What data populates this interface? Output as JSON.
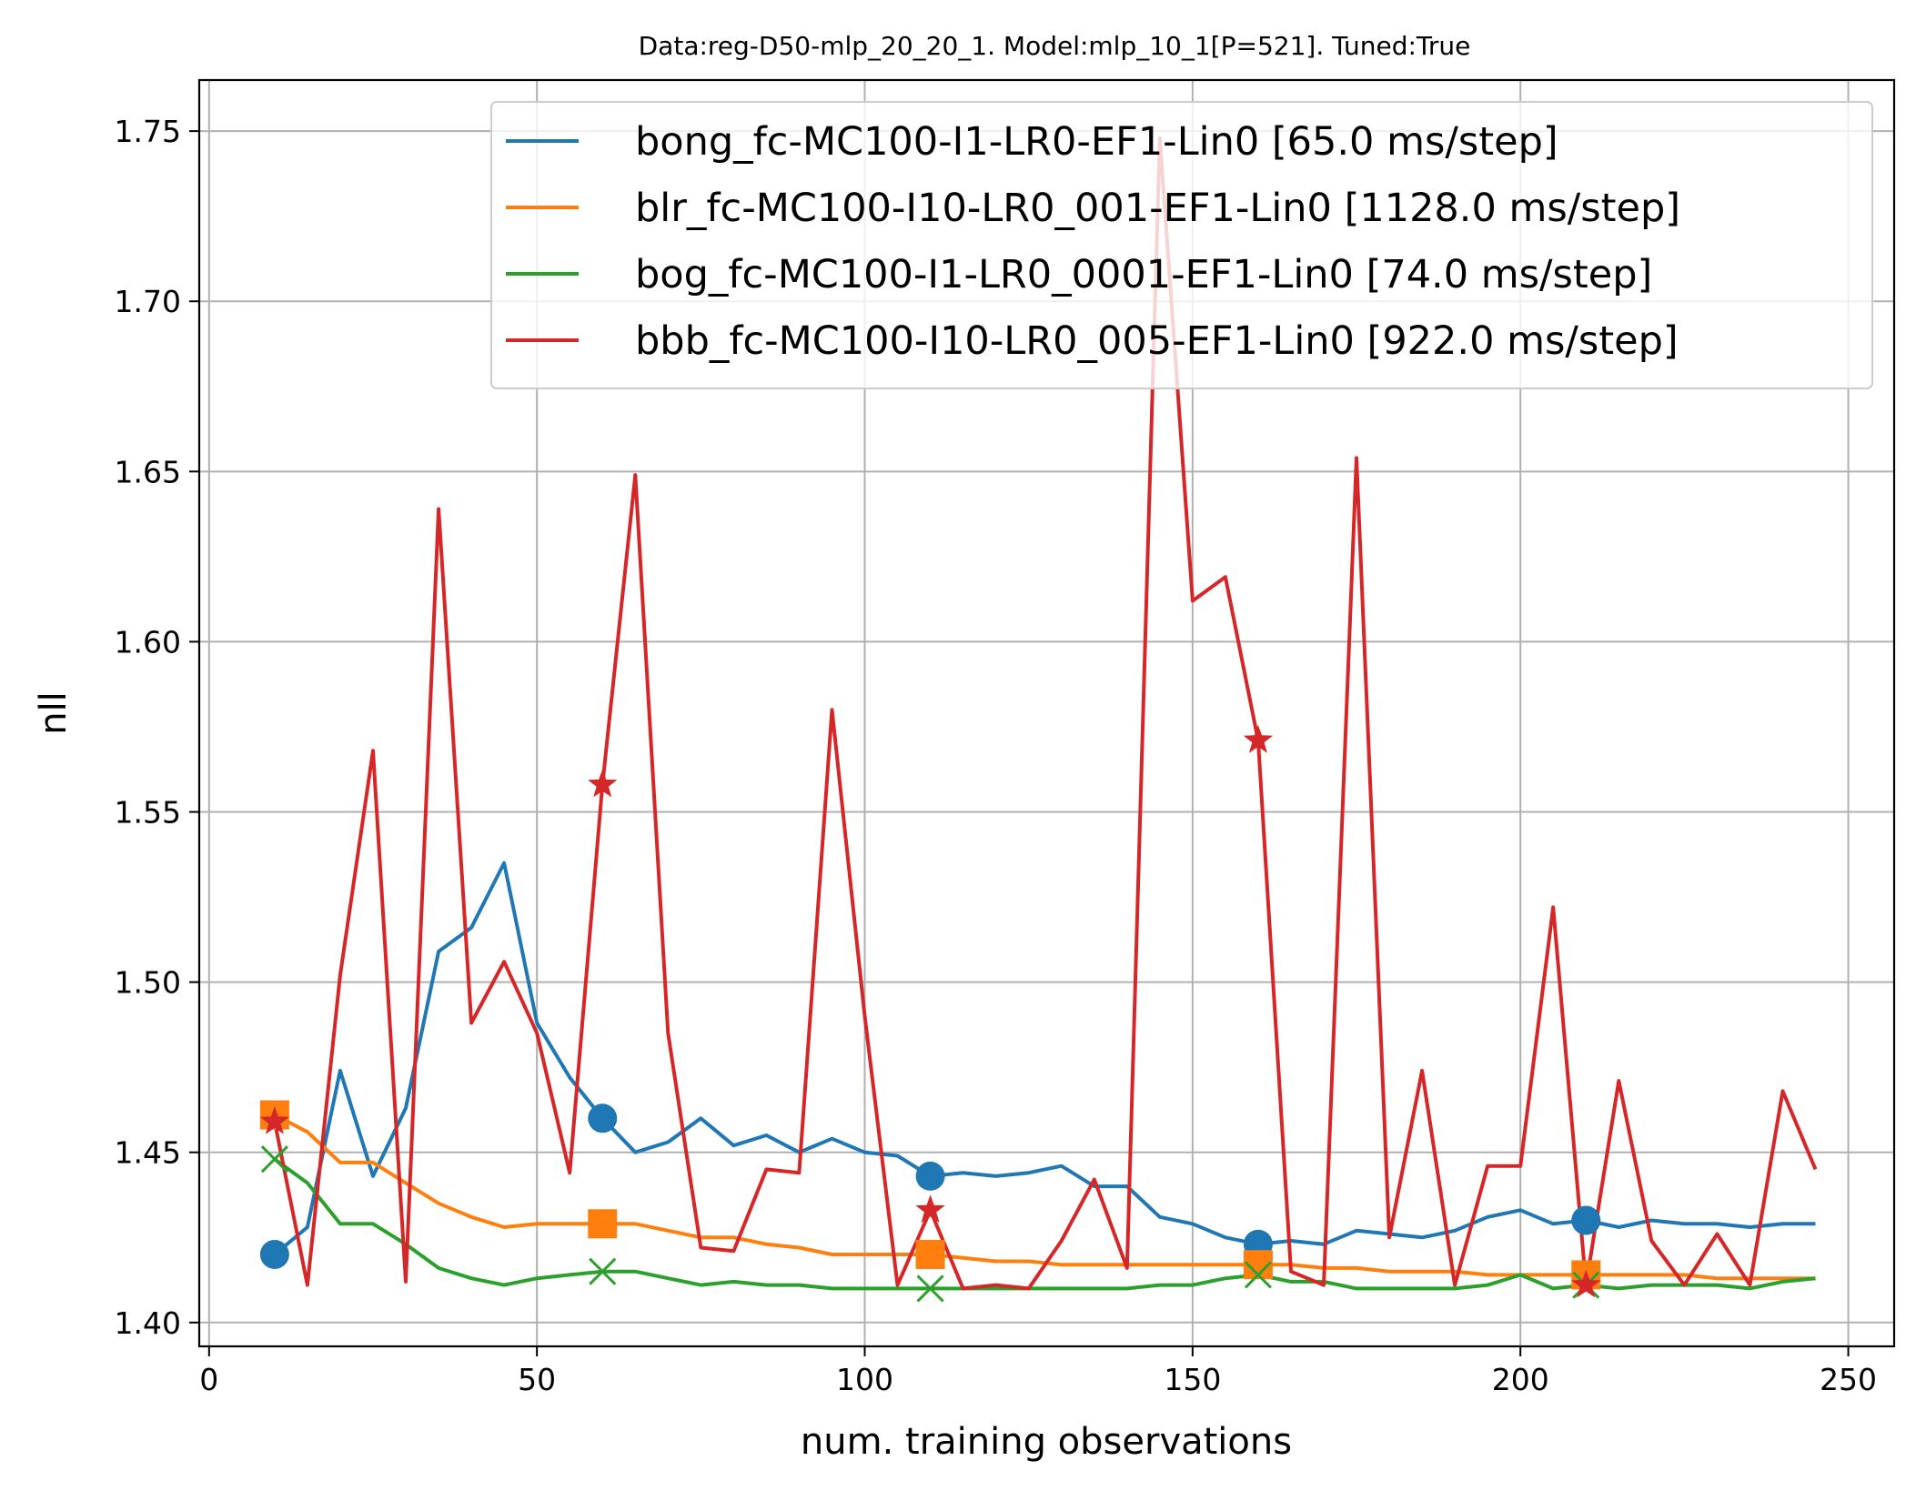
{
  "chart_data": {
    "type": "line",
    "title": "Data:reg-D50-mlp_20_20_1. Model:mlp_10_1[P=521]. Tuned:True",
    "xlabel": "num. training observations",
    "ylabel": "nll",
    "xlim": [
      -1.5,
      257
    ],
    "ylim": [
      1.393,
      1.765
    ],
    "xticks": [
      0,
      50,
      100,
      150,
      200,
      250
    ],
    "xtick_labels": [
      "0",
      "50",
      "100",
      "150",
      "200",
      "250"
    ],
    "yticks": [
      1.4,
      1.45,
      1.5,
      1.55,
      1.6,
      1.65,
      1.7,
      1.75
    ],
    "ytick_labels": [
      "1.40",
      "1.45",
      "1.50",
      "1.55",
      "1.60",
      "1.65",
      "1.70",
      "1.75"
    ],
    "grid": true,
    "legend_position": "upper right",
    "x": [
      10,
      15,
      20,
      25,
      30,
      35,
      40,
      45,
      50,
      55,
      60,
      65,
      70,
      75,
      80,
      85,
      90,
      95,
      100,
      105,
      110,
      115,
      120,
      125,
      130,
      135,
      140,
      145,
      150,
      155,
      160,
      165,
      170,
      175,
      180,
      185,
      190,
      195,
      200,
      205,
      210,
      215,
      220,
      225,
      230,
      235,
      240,
      245
    ],
    "marker_x": [
      10,
      60,
      110,
      160,
      210
    ],
    "series": [
      {
        "name": "bong_fc-MC100-I1-LR0-EF1-Lin0 [65.0 ms/step]",
        "color": "#1f77b4",
        "marker": "circle",
        "values": [
          1.42,
          1.428,
          1.474,
          1.443,
          1.463,
          1.509,
          1.516,
          1.535,
          1.488,
          1.472,
          1.46,
          1.45,
          1.453,
          1.46,
          1.452,
          1.455,
          1.45,
          1.454,
          1.45,
          1.449,
          1.443,
          1.444,
          1.443,
          1.444,
          1.446,
          1.44,
          1.44,
          1.431,
          1.429,
          1.425,
          1.423,
          1.424,
          1.423,
          1.427,
          1.426,
          1.425,
          1.427,
          1.431,
          1.433,
          1.429,
          1.43,
          1.428,
          1.43,
          1.429,
          1.429,
          1.428,
          1.429,
          1.429
        ]
      },
      {
        "name": "blr_fc-MC100-I10-LR0_001-EF1-Lin0 [1128.0 ms/step]",
        "color": "#ff7f0e",
        "marker": "square",
        "values": [
          1.461,
          1.456,
          1.447,
          1.447,
          1.441,
          1.435,
          1.431,
          1.428,
          1.429,
          1.429,
          1.429,
          1.429,
          1.427,
          1.425,
          1.425,
          1.423,
          1.422,
          1.42,
          1.42,
          1.42,
          1.42,
          1.419,
          1.418,
          1.418,
          1.417,
          1.417,
          1.417,
          1.417,
          1.417,
          1.417,
          1.417,
          1.417,
          1.416,
          1.416,
          1.415,
          1.415,
          1.415,
          1.414,
          1.414,
          1.414,
          1.414,
          1.414,
          1.414,
          1.414,
          1.413,
          1.413,
          1.413,
          1.413
        ]
      },
      {
        "name": "bog_fc-MC100-I1-LR0_0001-EF1-Lin0 [74.0 ms/step]",
        "color": "#2ca02c",
        "marker": "x",
        "values": [
          1.448,
          1.441,
          1.429,
          1.429,
          1.423,
          1.416,
          1.413,
          1.411,
          1.413,
          1.414,
          1.415,
          1.415,
          1.413,
          1.411,
          1.412,
          1.411,
          1.411,
          1.41,
          1.41,
          1.41,
          1.41,
          1.41,
          1.41,
          1.41,
          1.41,
          1.41,
          1.41,
          1.411,
          1.411,
          1.413,
          1.414,
          1.412,
          1.412,
          1.41,
          1.41,
          1.41,
          1.41,
          1.411,
          1.414,
          1.41,
          1.411,
          1.41,
          1.411,
          1.411,
          1.411,
          1.41,
          1.412,
          1.413
        ]
      },
      {
        "name": "bbb_fc-MC100-I10-LR0_005-EF1-Lin0 [922.0 ms/step]",
        "color": "#d62728",
        "marker": "star",
        "values": [
          1.459,
          1.411,
          1.502,
          1.568,
          1.412,
          1.639,
          1.488,
          1.506,
          1.485,
          1.444,
          1.558,
          1.649,
          1.485,
          1.422,
          1.421,
          1.445,
          1.444,
          1.58,
          1.49,
          1.411,
          1.433,
          1.41,
          1.411,
          1.41,
          1.424,
          1.442,
          1.416,
          1.748,
          1.612,
          1.619,
          1.571,
          1.415,
          1.411,
          1.654,
          1.425,
          1.474,
          1.411,
          1.446,
          1.446,
          1.522,
          1.411,
          1.471,
          1.424,
          1.411,
          1.426,
          1.411,
          1.468,
          1.445
        ]
      }
    ]
  }
}
